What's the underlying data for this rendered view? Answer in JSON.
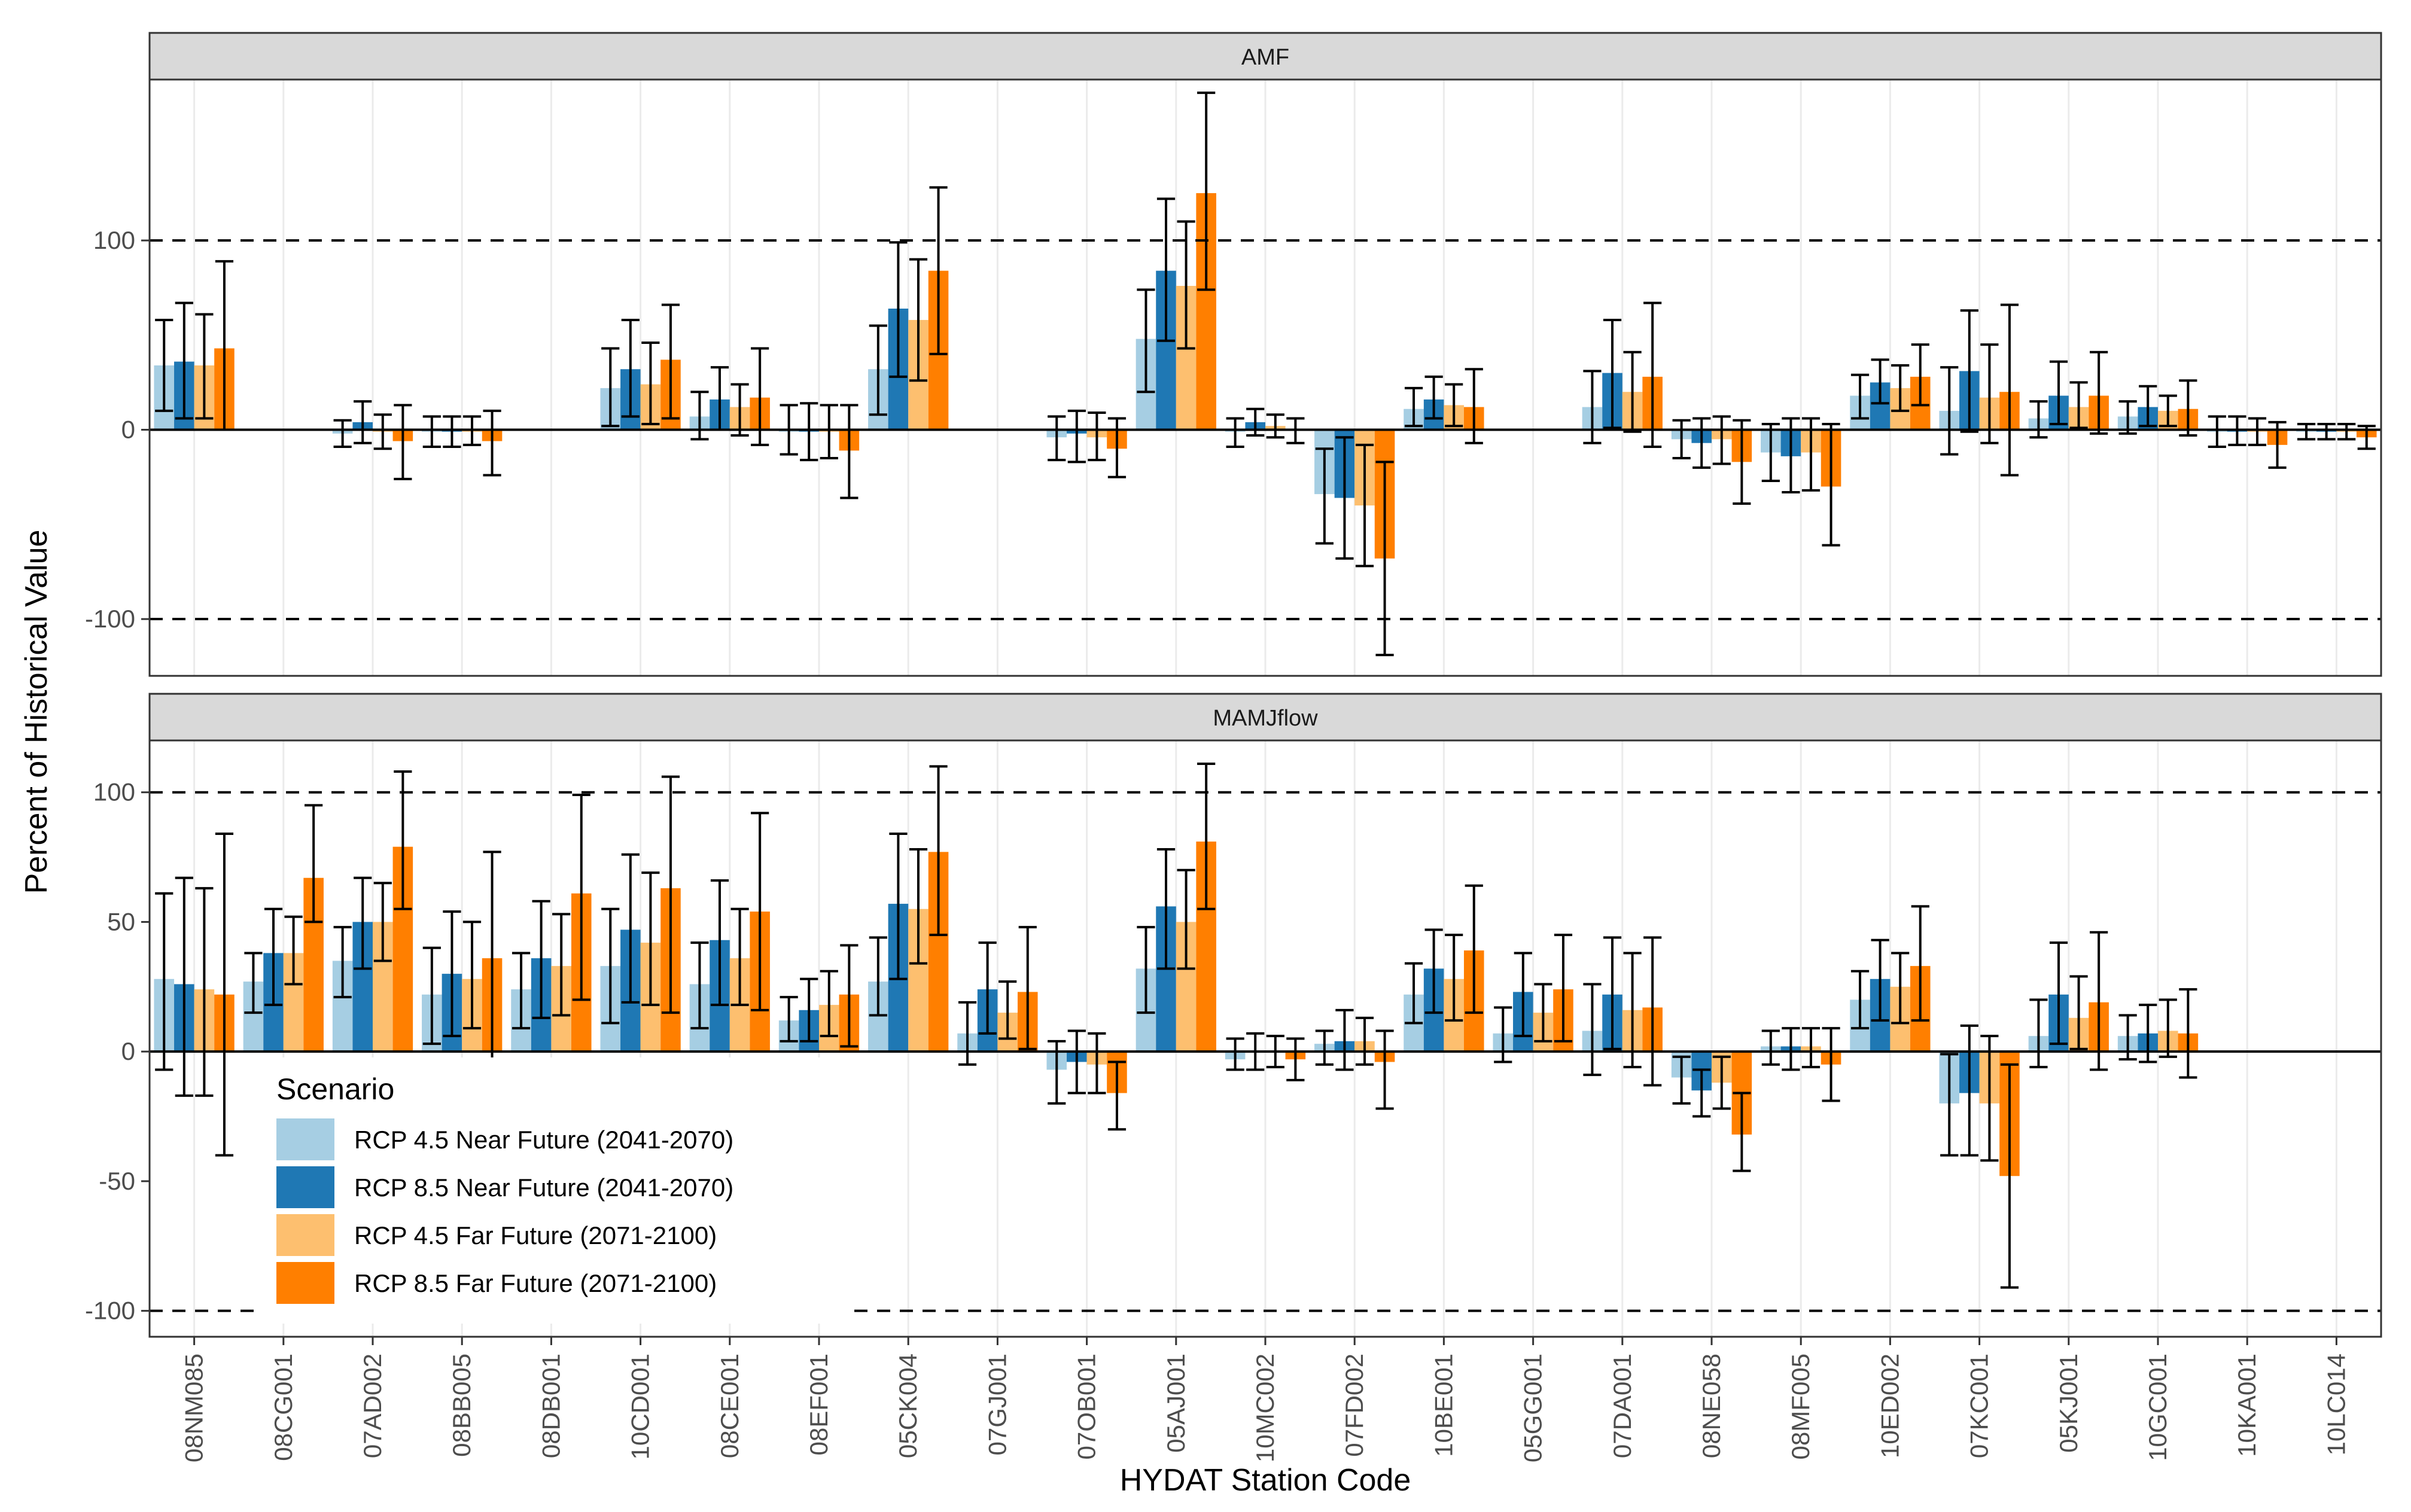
{
  "chart_data": {
    "type": "bar",
    "xlabel": "HYDAT Station Code",
    "ylabel": "Percent of Historical Value",
    "categories": [
      "08NM085",
      "08CG001",
      "07AD002",
      "08BB005",
      "08DB001",
      "10CD001",
      "08CE001",
      "08EF001",
      "05CK004",
      "07GJ001",
      "07OB001",
      "05AJ001",
      "10MC002",
      "07FD002",
      "10BE001",
      "05GG001",
      "07DA001",
      "08NE058",
      "08MF005",
      "10ED002",
      "07KC001",
      "05KJ001",
      "10GC001",
      "10KA001",
      "10LC014"
    ],
    "legend": {
      "title": "Scenario",
      "items": [
        {
          "label": "RCP 4.5 Near Future (2041-2070)",
          "color": "#a6cee3"
        },
        {
          "label": "RCP 8.5 Near Future (2041-2070)",
          "color": "#1f78b4"
        },
        {
          "label": "RCP 4.5 Far Future (2071-2100)",
          "color": "#fdbf6f"
        },
        {
          "label": "RCP 8.5 Far Future (2071-2100)",
          "color": "#ff7f00"
        }
      ]
    },
    "reference_lines": [
      100,
      -100
    ],
    "panels": [
      {
        "title": "AMF",
        "ylim": [
          -130,
          185
        ],
        "yticks": [
          100,
          0,
          -100
        ],
        "series": [
          {
            "name": "RCP 4.5 Near Future (2041-2070)",
            "values": [
              34,
              null,
              -2,
              -1,
              null,
              22,
              7,
              -1,
              32,
              null,
              -4,
              48,
              -1,
              -34,
              11,
              null,
              12,
              -5,
              -12,
              18,
              10,
              6,
              7,
              -1,
              -1
            ],
            "err_low": [
              10,
              null,
              -9,
              -9,
              null,
              2,
              -5,
              -13,
              8,
              null,
              -16,
              20,
              -9,
              -60,
              2,
              null,
              -7,
              -15,
              -27,
              6,
              -13,
              -4,
              -2,
              -9,
              -5
            ],
            "err_high": [
              58,
              null,
              5,
              7,
              null,
              43,
              20,
              13,
              55,
              null,
              7,
              74,
              6,
              -10,
              22,
              null,
              31,
              5,
              3,
              29,
              33,
              15,
              15,
              7,
              3
            ]
          },
          {
            "name": "RCP 8.5 Near Future (2041-2070)",
            "values": [
              36,
              null,
              4,
              -1,
              null,
              32,
              16,
              -1,
              64,
              null,
              -2,
              84,
              4,
              -36,
              16,
              null,
              30,
              -7,
              -14,
              25,
              31,
              18,
              12,
              -1,
              -1
            ],
            "err_low": [
              6,
              null,
              -7,
              -9,
              null,
              7,
              0,
              -16,
              28,
              null,
              -17,
              47,
              -3,
              -68,
              6,
              null,
              1,
              -20,
              -33,
              14,
              -1,
              3,
              2,
              -8,
              -5
            ],
            "err_high": [
              67,
              null,
              15,
              7,
              null,
              58,
              33,
              14,
              99,
              null,
              10,
              122,
              11,
              -4,
              28,
              null,
              58,
              6,
              6,
              37,
              63,
              36,
              23,
              7,
              3
            ]
          },
          {
            "name": "RCP 4.5 Far Future (2071-2100)",
            "values": [
              34,
              null,
              -1,
              -1,
              null,
              24,
              12,
              -1,
              58,
              null,
              -4,
              76,
              2,
              -40,
              13,
              null,
              20,
              -5,
              -12,
              22,
              17,
              12,
              10,
              -1,
              -1
            ],
            "err_low": [
              6,
              null,
              -10,
              -8,
              null,
              3,
              -3,
              -15,
              26,
              null,
              -16,
              43,
              -4,
              -72,
              2,
              null,
              -1,
              -18,
              -32,
              10,
              -7,
              1,
              2,
              -8,
              -5
            ],
            "err_high": [
              61,
              null,
              8,
              7,
              null,
              46,
              24,
              13,
              90,
              null,
              9,
              110,
              8,
              -8,
              24,
              null,
              41,
              7,
              6,
              34,
              45,
              25,
              18,
              6,
              3
            ]
          },
          {
            "name": "RCP 8.5 Far Future (2071-2100)",
            "values": [
              43,
              null,
              -6,
              -6,
              null,
              37,
              17,
              -11,
              84,
              null,
              -10,
              125,
              0,
              -68,
              12,
              null,
              28,
              -17,
              -30,
              28,
              20,
              18,
              11,
              -8,
              -4
            ],
            "err_low": [
              0,
              null,
              -26,
              -24,
              null,
              6,
              -8,
              -36,
              40,
              null,
              -25,
              74,
              -7,
              -119,
              -7,
              null,
              -9,
              -39,
              -61,
              13,
              -24,
              -2,
              -3,
              -20,
              -10
            ],
            "err_high": [
              89,
              null,
              13,
              10,
              null,
              66,
              43,
              13,
              128,
              null,
              6,
              178,
              6,
              -17,
              32,
              null,
              67,
              5,
              3,
              45,
              66,
              41,
              26,
              4,
              2
            ]
          }
        ]
      },
      {
        "title": "MAMJflow",
        "ylim": [
          -110,
          120
        ],
        "yticks": [
          100,
          50,
          0,
          -50,
          -100
        ],
        "series": [
          {
            "name": "RCP 4.5 Near Future (2041-2070)",
            "values": [
              28,
              27,
              35,
              22,
              24,
              33,
              26,
              12,
              27,
              7,
              -7,
              32,
              -3,
              3,
              22,
              7,
              8,
              -10,
              2,
              20,
              -20,
              6,
              6,
              null,
              null
            ],
            "err_low": [
              -7,
              15,
              21,
              3,
              9,
              11,
              9,
              4,
              14,
              -5,
              -20,
              15,
              -7,
              -5,
              11,
              -4,
              -9,
              -20,
              -5,
              9,
              -40,
              -6,
              -3,
              null,
              null
            ],
            "err_high": [
              61,
              38,
              48,
              40,
              38,
              55,
              42,
              21,
              44,
              19,
              4,
              48,
              5,
              8,
              34,
              17,
              26,
              -2,
              8,
              31,
              -1,
              20,
              14,
              null,
              null
            ]
          },
          {
            "name": "RCP 8.5 Near Future (2041-2070)",
            "values": [
              26,
              38,
              50,
              30,
              36,
              47,
              43,
              16,
              57,
              24,
              -4,
              56,
              0,
              4,
              32,
              23,
              22,
              -15,
              2,
              28,
              -16,
              22,
              7,
              null,
              null
            ],
            "err_low": [
              -17,
              18,
              32,
              6,
              13,
              19,
              18,
              4,
              28,
              7,
              -16,
              32,
              -7,
              -7,
              15,
              6,
              1,
              -25,
              -7,
              12,
              -40,
              3,
              -4,
              null,
              null
            ],
            "err_high": [
              67,
              55,
              67,
              54,
              58,
              76,
              66,
              28,
              84,
              42,
              8,
              78,
              7,
              16,
              47,
              38,
              44,
              -7,
              9,
              43,
              10,
              42,
              18,
              null,
              null
            ]
          },
          {
            "name": "RCP 4.5 Far Future (2071-2100)",
            "values": [
              24,
              38,
              50,
              28,
              33,
              42,
              36,
              18,
              55,
              15,
              -5,
              50,
              0,
              4,
              28,
              15,
              16,
              -12,
              2,
              25,
              -20,
              13,
              8,
              null,
              null
            ],
            "err_low": [
              -17,
              26,
              35,
              9,
              14,
              18,
              18,
              6,
              34,
              5,
              -16,
              32,
              -6,
              -5,
              12,
              4,
              -6,
              -22,
              -6,
              11,
              -42,
              1,
              -2,
              null,
              null
            ],
            "err_high": [
              63,
              52,
              65,
              50,
              53,
              69,
              55,
              31,
              78,
              27,
              7,
              70,
              6,
              13,
              45,
              26,
              38,
              -2,
              9,
              38,
              6,
              29,
              20,
              null,
              null
            ]
          },
          {
            "name": "RCP 8.5 Far Future (2071-2100)",
            "values": [
              22,
              67,
              79,
              36,
              61,
              63,
              54,
              22,
              77,
              23,
              -16,
              81,
              -3,
              -4,
              39,
              24,
              17,
              -32,
              -5,
              33,
              -48,
              19,
              7,
              null,
              null
            ],
            "err_low": [
              -40,
              50,
              55,
              -4,
              20,
              15,
              16,
              2,
              45,
              1,
              -30,
              55,
              -11,
              -22,
              15,
              4,
              -13,
              -46,
              -19,
              12,
              -91,
              -7,
              -10,
              null,
              null
            ],
            "err_high": [
              84,
              95,
              108,
              77,
              99,
              106,
              92,
              41,
              110,
              48,
              -4,
              111,
              5,
              8,
              64,
              45,
              44,
              -16,
              9,
              56,
              -5,
              46,
              24,
              null,
              null
            ]
          }
        ]
      }
    ]
  }
}
